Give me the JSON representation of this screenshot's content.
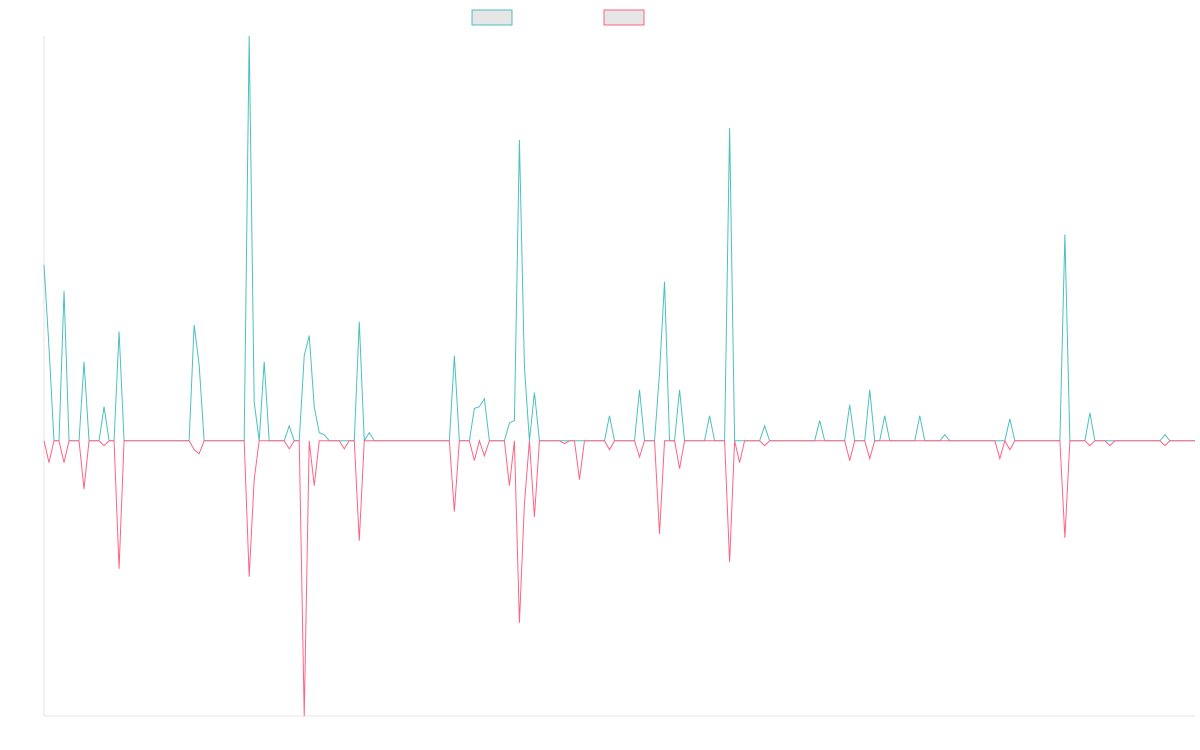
{
  "chart_data": {
    "type": "line",
    "ylim": [
      -68,
      100
    ],
    "series": [
      {
        "color": "#4bc0c0",
        "values": [
          43.5,
          23,
          0,
          0,
          37,
          0,
          0,
          0,
          19.5,
          0,
          0,
          0,
          8.4,
          0,
          0,
          27,
          0,
          0,
          0,
          0,
          0,
          0,
          0,
          0,
          0,
          0,
          0,
          0,
          0,
          0,
          28.6,
          18.8,
          0,
          0,
          0,
          0,
          0,
          0,
          0,
          0,
          0,
          100,
          9.6,
          0,
          19.5,
          0,
          0,
          0,
          0,
          3.7,
          0,
          0,
          21,
          26,
          8.4,
          2,
          1.5,
          0,
          0,
          0,
          0,
          0,
          0,
          29.4,
          0,
          2,
          0,
          0,
          0,
          0,
          0,
          0,
          0,
          0,
          0,
          0,
          0,
          0,
          0,
          0,
          0,
          0,
          21,
          0,
          0,
          0,
          8,
          8.4,
          10.4,
          0,
          0,
          0,
          0,
          4.4,
          5,
          74.3,
          18.3,
          0,
          11.9,
          0,
          0,
          0,
          0,
          0,
          0,
          0,
          0,
          0,
          0,
          0,
          0,
          0,
          0,
          6.2,
          0,
          0,
          0,
          0,
          0,
          12.6,
          0,
          0,
          0,
          16.8,
          39.3,
          0,
          0,
          12.6,
          0,
          0,
          0,
          0,
          0,
          6.2,
          0,
          0,
          0,
          77.3,
          0,
          0,
          0,
          0,
          0,
          0,
          3.7,
          0,
          0,
          0,
          0,
          0,
          0,
          0,
          0,
          0,
          0,
          5,
          0,
          0,
          0,
          0,
          0,
          8.9,
          0,
          0,
          0,
          12.6,
          0,
          0,
          6.2,
          0,
          0,
          0,
          0,
          0,
          0,
          6.2,
          0,
          0,
          0,
          0,
          1.5,
          0,
          0,
          0,
          0,
          0,
          0,
          0,
          0,
          0,
          0,
          0,
          0,
          5.4,
          0,
          0,
          0,
          0,
          0,
          0,
          0,
          0,
          0,
          0,
          51,
          0,
          0,
          0,
          0,
          6.9,
          0,
          0,
          0,
          0,
          0,
          0,
          0,
          0,
          0,
          0,
          0,
          0,
          0,
          0,
          1.5,
          0,
          0,
          0,
          0,
          0,
          0
        ]
      },
      {
        "color": "#ff6384",
        "values": [
          0,
          -5.4,
          0,
          0,
          -5.4,
          0,
          0,
          0,
          -11.9,
          0,
          0,
          0,
          -1.2,
          0,
          0,
          -31.6,
          0,
          0,
          0,
          0,
          0,
          0,
          0,
          0,
          0,
          0,
          0,
          0,
          0,
          0,
          -2.2,
          -3.2,
          0,
          0,
          0,
          0,
          0,
          0,
          0,
          0,
          0,
          -33.6,
          -9.6,
          0,
          0,
          0,
          0,
          0,
          0,
          -2,
          0,
          0,
          -68,
          0,
          -11.1,
          0,
          0,
          0,
          0,
          0,
          -2,
          0,
          0,
          -24.7,
          0,
          0,
          0,
          0,
          0,
          0,
          0,
          0,
          0,
          0,
          0,
          0,
          0,
          0,
          0,
          0,
          0,
          0,
          -17.5,
          0,
          0,
          0,
          -4.9,
          0,
          -3.7,
          0,
          0,
          0,
          0,
          -11.1,
          0,
          -45,
          -15.6,
          0,
          -18.8,
          0,
          0,
          0,
          0,
          0,
          -0.7,
          0,
          0,
          -9.6,
          0,
          0,
          0,
          0,
          0,
          -2.2,
          0,
          0,
          0,
          0,
          0,
          -4,
          0,
          0,
          0,
          -23,
          0,
          0,
          0,
          -6.9,
          0,
          0,
          0,
          0,
          0,
          0,
          0,
          0,
          0,
          -30,
          0,
          -5.4,
          0,
          0,
          0,
          0,
          -1.2,
          0,
          0,
          0,
          0,
          0,
          0,
          0,
          0,
          0,
          0,
          0,
          0,
          0,
          0,
          0,
          0,
          -4.9,
          0,
          0,
          0,
          -4.4,
          0,
          0,
          0,
          0,
          0,
          0,
          0,
          0,
          0,
          0,
          0,
          0,
          0,
          0,
          0,
          0,
          0,
          0,
          0,
          0,
          0,
          0,
          0,
          0,
          0,
          -4.4,
          0,
          -2.2,
          0,
          0,
          0,
          0,
          0,
          0,
          0,
          0,
          0,
          0,
          -24,
          0,
          0,
          0,
          0,
          -1.2,
          0,
          0,
          0,
          -1.2,
          0,
          0,
          0,
          0,
          0,
          0,
          0,
          0,
          0,
          0,
          -1.2,
          0,
          0,
          0,
          0,
          0,
          0
        ]
      }
    ]
  }
}
